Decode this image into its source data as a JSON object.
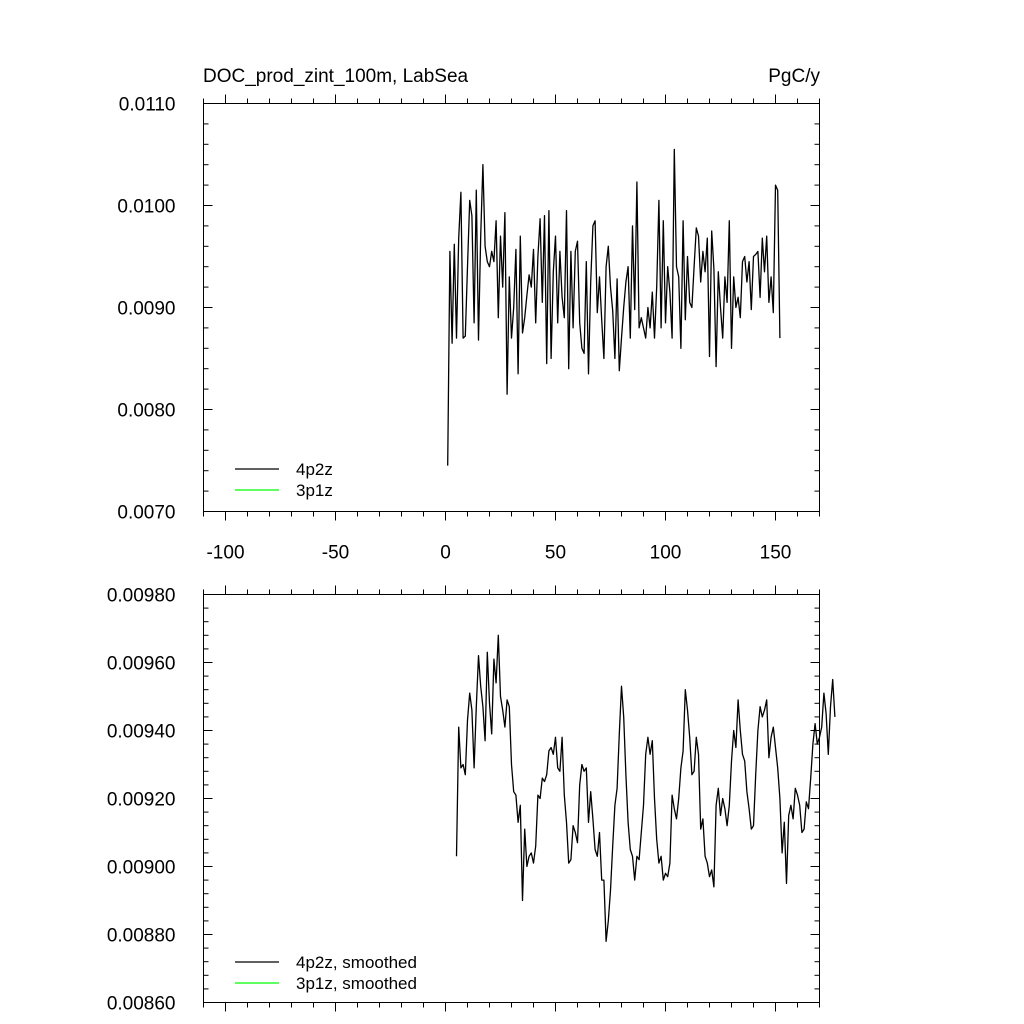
{
  "chart_data": [
    {
      "type": "line",
      "title": "DOC_prod_zint_100m, LabSea",
      "units": "PgC/y",
      "xlim": [
        -110,
        170
      ],
      "ylim": [
        0.007,
        0.011
      ],
      "xticks": [
        -100,
        -50,
        0,
        50,
        100,
        150
      ],
      "xtick_labels": [
        "-100",
        "-50",
        "0",
        "50",
        "100",
        "150"
      ],
      "yticks": [
        0.007,
        0.008,
        0.009,
        0.01,
        0.011
      ],
      "ytick_labels": [
        "0.0070",
        "0.0080",
        "0.0090",
        "0.0100",
        "0.0110"
      ],
      "legend_position": "bottom-left",
      "series": [
        {
          "name": "4p2z",
          "color": "#000000",
          "x_start": 1,
          "x_step": 1,
          "values": [
            0.00745,
            0.00955,
            0.00865,
            0.00962,
            0.0087,
            0.00968,
            0.01013,
            0.0087,
            0.00872,
            0.0094,
            0.01005,
            0.0099,
            0.00885,
            0.01015,
            0.00868,
            0.0097,
            0.0104,
            0.0096,
            0.00945,
            0.0094,
            0.00955,
            0.00945,
            0.00985,
            0.0089,
            0.0097,
            0.0092,
            0.00993,
            0.00815,
            0.0093,
            0.0087,
            0.009,
            0.00957,
            0.00835,
            0.0097,
            0.00875,
            0.0089,
            0.00912,
            0.00932,
            0.0092,
            0.00957,
            0.00885,
            0.0095,
            0.00987,
            0.00905,
            0.0099,
            0.00845,
            0.00995,
            0.0085,
            0.00935,
            0.0097,
            0.00885,
            0.00955,
            0.0091,
            0.0089,
            0.00995,
            0.0084,
            0.00955,
            0.0088,
            0.00955,
            0.00965,
            0.00885,
            0.0086,
            0.00855,
            0.00945,
            0.00835,
            0.00925,
            0.0098,
            0.00985,
            0.00895,
            0.0093,
            0.00888,
            0.0085,
            0.0094,
            0.0096,
            0.0092,
            0.00897,
            0.0085,
            0.00928,
            0.00838,
            0.0087,
            0.009,
            0.00925,
            0.0094,
            0.0087,
            0.0098,
            0.00898,
            0.01023,
            0.0088,
            0.0089,
            0.0088,
            0.0087,
            0.009,
            0.0088,
            0.00915,
            0.0087,
            0.0092,
            0.01005,
            0.0088,
            0.00985,
            0.00885,
            0.0094,
            0.00915,
            0.0087,
            0.01055,
            0.0094,
            0.0093,
            0.0086,
            0.00985,
            0.00888,
            0.0095,
            0.00905,
            0.009,
            0.0094,
            0.00978,
            0.0097,
            0.00925,
            0.00955,
            0.00935,
            0.00968,
            0.00852,
            0.00975,
            0.00938,
            0.00842,
            0.00935,
            0.009,
            0.0087,
            0.0093,
            0.00905,
            0.00985,
            0.0086,
            0.0093,
            0.009,
            0.0091,
            0.0089,
            0.00945,
            0.0095,
            0.00925,
            0.00945,
            0.00898,
            0.0095,
            0.00952,
            0.00955,
            0.0091,
            0.00968,
            0.00935,
            0.0097,
            0.00905,
            0.0093,
            0.00895,
            0.0102,
            0.01015,
            0.0087
          ]
        },
        {
          "name": "3p1z",
          "color": "#00ff00",
          "values": []
        }
      ]
    },
    {
      "type": "line",
      "xlim": [
        -110,
        170
      ],
      "ylim": [
        0.0086,
        0.0098
      ],
      "xticks": [
        -100,
        -50,
        0,
        50,
        100,
        150
      ],
      "yticks": [
        0.0086,
        0.0088,
        0.009,
        0.0092,
        0.0094,
        0.0096,
        0.0098
      ],
      "ytick_labels": [
        "0.00860",
        "0.00880",
        "0.00900",
        "0.00920",
        "0.00940",
        "0.00960",
        "0.00980"
      ],
      "legend_position": "bottom-left",
      "series": [
        {
          "name": "4p2z, smoothed",
          "color": "#000000",
          "x_start": 5,
          "x_step": 1,
          "values": [
            0.00903,
            0.00941,
            0.00929,
            0.0093,
            0.00927,
            0.00943,
            0.00951,
            0.00946,
            0.00929,
            0.00947,
            0.00962,
            0.00953,
            0.00947,
            0.00937,
            0.00963,
            0.00948,
            0.00939,
            0.00961,
            0.00954,
            0.00968,
            0.0095,
            0.00946,
            0.00941,
            0.00949,
            0.00947,
            0.0093,
            0.00922,
            0.00921,
            0.00913,
            0.00918,
            0.0089,
            0.00911,
            0.009,
            0.00903,
            0.00904,
            0.00901,
            0.00906,
            0.00921,
            0.0092,
            0.00926,
            0.00925,
            0.00927,
            0.00934,
            0.00935,
            0.00933,
            0.00938,
            0.00929,
            0.00928,
            0.00938,
            0.00921,
            0.00913,
            0.00901,
            0.00902,
            0.00912,
            0.0091,
            0.00907,
            0.00924,
            0.0093,
            0.00928,
            0.00929,
            0.00913,
            0.00922,
            0.00914,
            0.00905,
            0.00903,
            0.0091,
            0.00896,
            0.00896,
            0.00878,
            0.00884,
            0.00893,
            0.00906,
            0.00918,
            0.00923,
            0.00939,
            0.00953,
            0.00944,
            0.00927,
            0.00913,
            0.00905,
            0.00903,
            0.00896,
            0.00903,
            0.00902,
            0.0091,
            0.00918,
            0.00933,
            0.00938,
            0.00933,
            0.00937,
            0.0092,
            0.00908,
            0.00901,
            0.00903,
            0.00896,
            0.00898,
            0.00897,
            0.00901,
            0.00921,
            0.00917,
            0.00914,
            0.0092,
            0.00929,
            0.00934,
            0.00952,
            0.00946,
            0.00938,
            0.00927,
            0.00928,
            0.00938,
            0.00933,
            0.00911,
            0.00914,
            0.00903,
            0.00901,
            0.00897,
            0.00899,
            0.00894,
            0.00918,
            0.00923,
            0.00915,
            0.0092,
            0.00917,
            0.00912,
            0.00918,
            0.00931,
            0.0094,
            0.00935,
            0.00949,
            0.0094,
            0.00933,
            0.00931,
            0.00922,
            0.00917,
            0.00911,
            0.00912,
            0.00927,
            0.0094,
            0.00947,
            0.00944,
            0.00946,
            0.00949,
            0.00932,
            0.00938,
            0.00941,
            0.00935,
            0.00929,
            0.0092,
            0.00904,
            0.00913,
            0.00895,
            0.00915,
            0.00918,
            0.00914,
            0.00923,
            0.00921,
            0.00918,
            0.0091,
            0.00911,
            0.00919,
            0.00917,
            0.00926,
            0.00936,
            0.00942,
            0.00936,
            0.00938,
            0.00941,
            0.00951,
            0.00945,
            0.00933,
            0.00947,
            0.00955,
            0.00944
          ]
        },
        {
          "name": "3p1z, smoothed",
          "color": "#00ff00",
          "values": []
        }
      ]
    }
  ]
}
